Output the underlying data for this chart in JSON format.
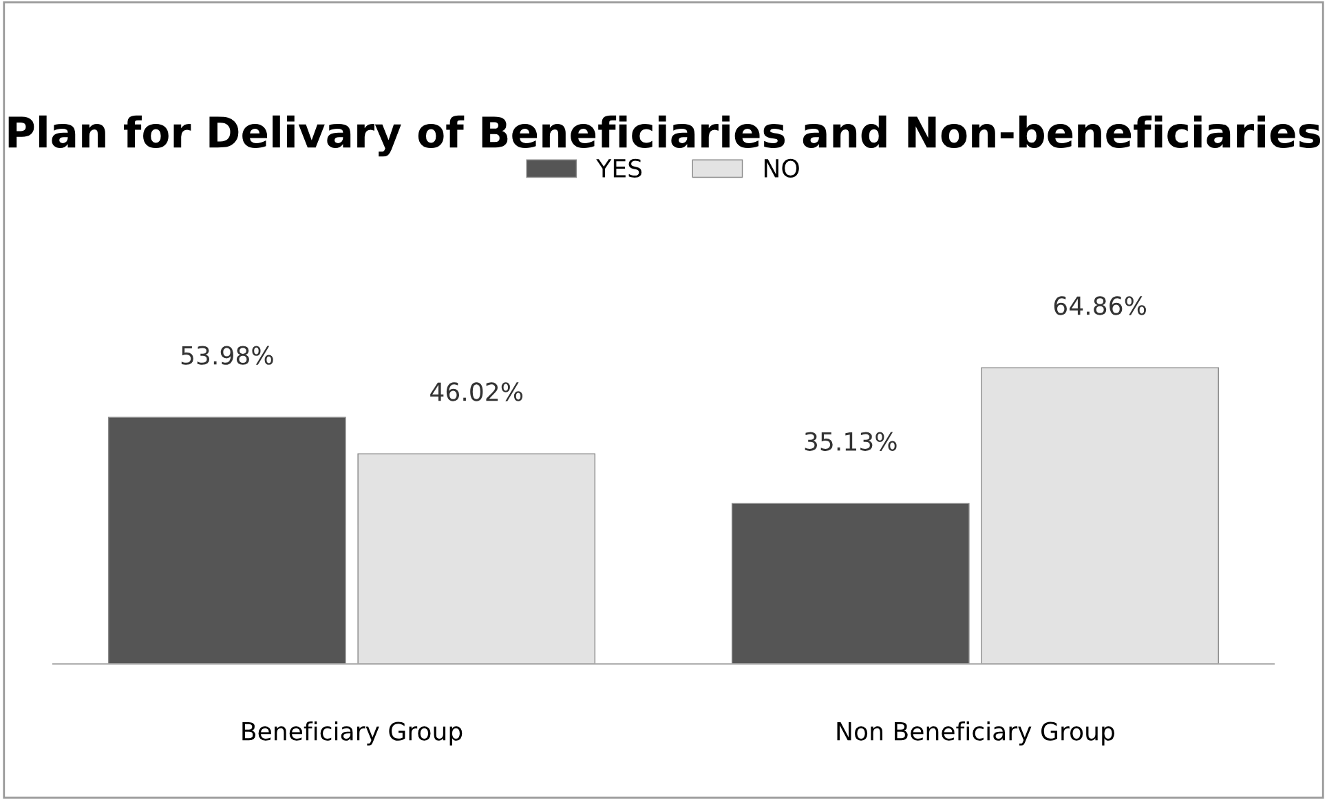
{
  "chart_data": {
    "type": "bar",
    "title": "Plan for Delivary of Beneficiaries and Non-beneficiaries",
    "categories": [
      "Beneficiary Group",
      "Non Beneficiary Group"
    ],
    "series": [
      {
        "name": "YES",
        "color": "#555555",
        "values": [
          53.98,
          35.13
        ],
        "value_labels": [
          "53.98%",
          "35.13%"
        ]
      },
      {
        "name": "NO",
        "color": "#e3e3e3",
        "values": [
          46.02,
          64.86
        ],
        "value_labels": [
          "46.02%",
          "64.86%"
        ]
      }
    ],
    "legend": "top",
    "grid": false
  }
}
